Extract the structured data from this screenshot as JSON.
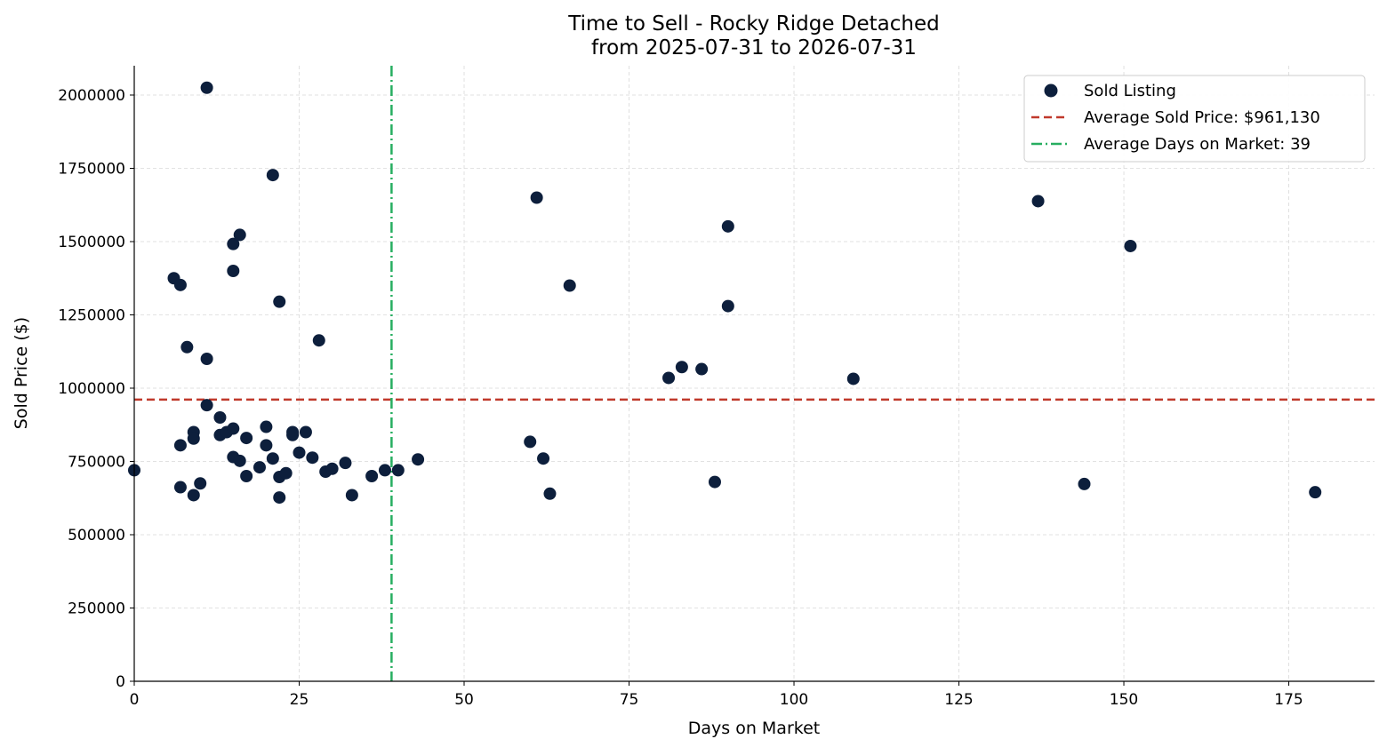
{
  "chart_data": {
    "type": "scatter",
    "title": "Time to Sell - Rocky Ridge Detached",
    "subtitle": "from 2025-07-31 to 2026-07-31",
    "xlabel": "Days on Market",
    "ylabel": "Sold Price ($)",
    "xlim": [
      0,
      188
    ],
    "ylim": [
      0,
      2100000
    ],
    "x_ticks": [
      0,
      25,
      50,
      75,
      100,
      125,
      150,
      175
    ],
    "y_ticks": [
      0,
      250000,
      500000,
      750000,
      1000000,
      1250000,
      1500000,
      1750000,
      2000000
    ],
    "x_tick_labels": [
      "0",
      "25",
      "50",
      "75",
      "100",
      "125",
      "150",
      "175"
    ],
    "y_tick_labels": [
      "0",
      "250000",
      "500000",
      "750000",
      "1000000",
      "1250000",
      "1500000",
      "1750000",
      "2000000"
    ],
    "grid": true,
    "legend_position": "top-right",
    "colors": {
      "points": "#0d1f3c",
      "avg_price_line": "#c0392b",
      "avg_days_line": "#27ae60",
      "grid": "#d9d9d9"
    },
    "series": [
      {
        "name": "Sold Listing",
        "points": [
          [
            0,
            720000
          ],
          [
            6,
            1375000
          ],
          [
            7,
            1352000
          ],
          [
            7,
            805000
          ],
          [
            7,
            662000
          ],
          [
            8,
            1140000
          ],
          [
            9,
            850000
          ],
          [
            9,
            828000
          ],
          [
            9,
            635000
          ],
          [
            10,
            675000
          ],
          [
            11,
            2025000
          ],
          [
            11,
            1100000
          ],
          [
            11,
            942000
          ],
          [
            13,
            900000
          ],
          [
            13,
            840000
          ],
          [
            14,
            850000
          ],
          [
            15,
            1492000
          ],
          [
            15,
            1400000
          ],
          [
            15,
            862000
          ],
          [
            15,
            765000
          ],
          [
            16,
            1523000
          ],
          [
            16,
            752000
          ],
          [
            17,
            830000
          ],
          [
            17,
            700000
          ],
          [
            19,
            730000
          ],
          [
            20,
            868000
          ],
          [
            20,
            805000
          ],
          [
            21,
            1727000
          ],
          [
            21,
            760000
          ],
          [
            22,
            1295000
          ],
          [
            22,
            697000
          ],
          [
            22,
            627000
          ],
          [
            23,
            710000
          ],
          [
            24,
            850000
          ],
          [
            24,
            840000
          ],
          [
            25,
            780000
          ],
          [
            26,
            850000
          ],
          [
            27,
            763000
          ],
          [
            28,
            1163000
          ],
          [
            29,
            715000
          ],
          [
            30,
            725000
          ],
          [
            32,
            745000
          ],
          [
            33,
            635000
          ],
          [
            36,
            700000
          ],
          [
            38,
            720000
          ],
          [
            40,
            720000
          ],
          [
            43,
            757000
          ],
          [
            60,
            817000
          ],
          [
            61,
            1650000
          ],
          [
            62,
            760000
          ],
          [
            63,
            640000
          ],
          [
            66,
            1350000
          ],
          [
            81,
            1035000
          ],
          [
            83,
            1072000
          ],
          [
            86,
            1065000
          ],
          [
            88,
            680000
          ],
          [
            90,
            1552000
          ],
          [
            90,
            1280000
          ],
          [
            109,
            1032000
          ],
          [
            137,
            1638000
          ],
          [
            144,
            673000
          ],
          [
            151,
            1485000
          ],
          [
            179,
            645000
          ]
        ]
      }
    ],
    "reference_lines": {
      "avg_price": {
        "label": "Average Sold Price: $961,130",
        "value": 961130
      },
      "avg_days": {
        "label": "Average Days on Market: 39",
        "value": 39
      }
    }
  }
}
